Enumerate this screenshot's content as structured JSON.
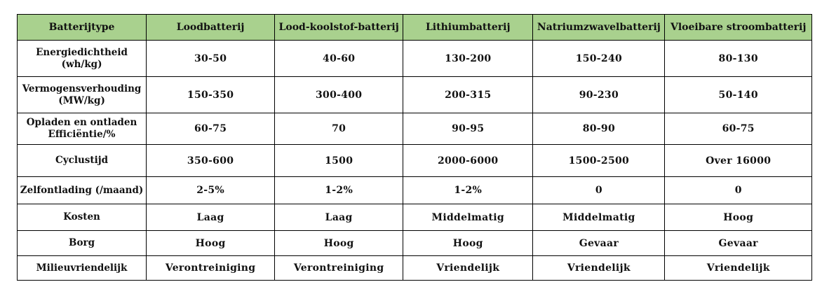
{
  "table": {
    "headers": [
      "Batterijtype",
      "Loodbatterij",
      "Lood-koolstof-batterij",
      "Lithiumbatterij",
      "Natriumzwavelbatterij",
      "Vloeibare stroombatterij"
    ],
    "rows": [
      {
        "label": [
          "Energiedichtheid",
          "(wh/kg)"
        ],
        "values": [
          "30-50",
          "40-60",
          "130-200",
          "150-240",
          "80-130"
        ]
      },
      {
        "label": [
          "Vermogensverhouding",
          "(MW/kg)"
        ],
        "values": [
          "150-350",
          "300-400",
          "200-315",
          "90-230",
          "50-140"
        ]
      },
      {
        "label": [
          "Opladen en ontladen",
          "Efficiëntie/%"
        ],
        "values": [
          "60-75",
          "70",
          "90-95",
          "80-90",
          "60-75"
        ]
      },
      {
        "label": [
          "Cyclustijd"
        ],
        "values": [
          "350-600",
          "1500",
          "2000-6000",
          "1500-2500",
          "Over 16000"
        ]
      },
      {
        "label": [
          "Zelfontlading (/maand)"
        ],
        "values": [
          "2-5%",
          "1-2%",
          "1-2%",
          "0",
          "0"
        ]
      },
      {
        "label": [
          "Kosten"
        ],
        "values": [
          "Laag",
          "Laag",
          "Middelmatig",
          "Middelmatig",
          "Hoog"
        ]
      },
      {
        "label": [
          "Borg"
        ],
        "values": [
          "Hoog",
          "Hoog",
          "Hoog",
          "Gevaar",
          "Gevaar"
        ]
      },
      {
        "label": [
          "Milieuvriendelijk"
        ],
        "values": [
          "Verontreiniging",
          "Verontreiniging",
          "Vriendelijk",
          "Vriendelijk",
          "Vriendelijk"
        ]
      }
    ]
  },
  "colors": {
    "header_background": "#a9d18e",
    "border": "#000000"
  }
}
